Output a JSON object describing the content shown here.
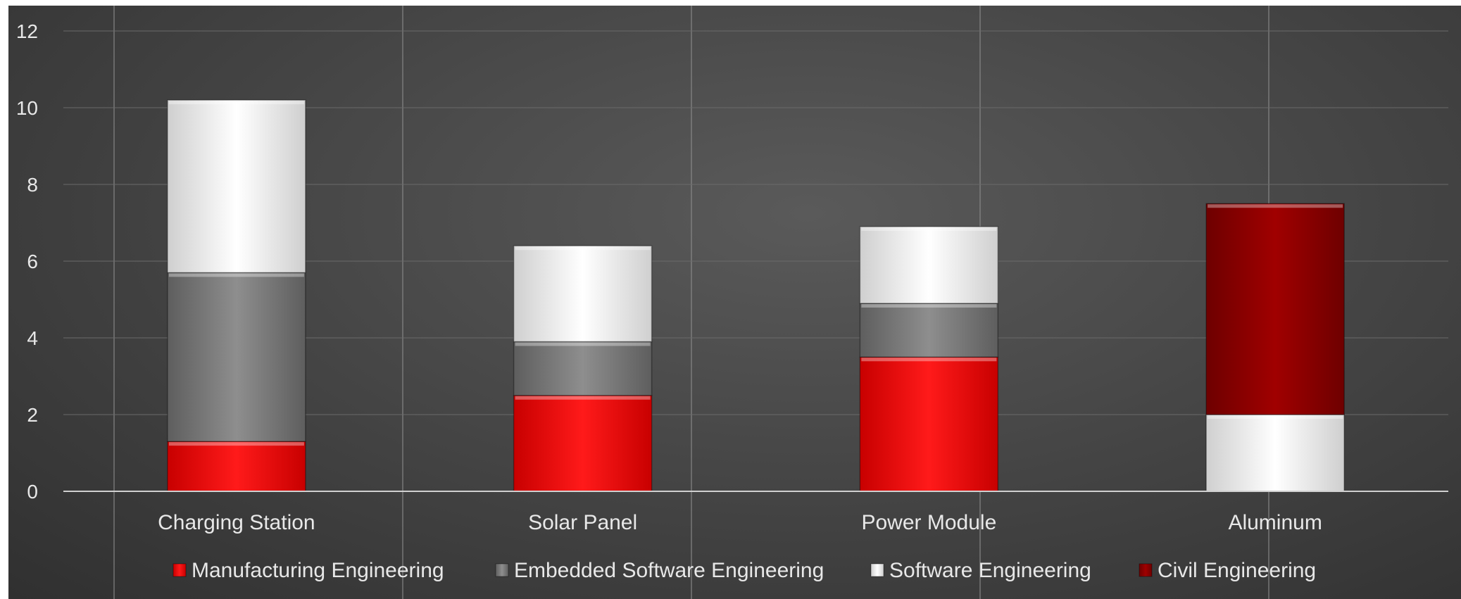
{
  "chart_data": {
    "type": "bar",
    "stacked": true,
    "categories": [
      "Charging Station",
      "Solar Panel",
      "Power Module",
      "Aluminum"
    ],
    "series": [
      {
        "name": "Manufacturing Engineering",
        "values": [
          1.3,
          2.5,
          3.5,
          0
        ],
        "color": "#e00000"
      },
      {
        "name": "Embedded Software Engineering",
        "values": [
          4.4,
          1.4,
          1.4,
          0
        ],
        "color": "#7a7a7a"
      },
      {
        "name": "Software Engineering",
        "values": [
          4.5,
          2.5,
          2.0,
          2.0
        ],
        "color": "#e6e6e6"
      },
      {
        "name": "Civil Engineering",
        "values": [
          0,
          0,
          0,
          5.5
        ],
        "color": "#8b0000"
      }
    ],
    "ylim": [
      0,
      12
    ],
    "yticks": [
      "0",
      "2",
      "4",
      "6",
      "8",
      "10",
      "12"
    ],
    "grid": true,
    "legend_position": "bottom",
    "background": "#474747"
  }
}
